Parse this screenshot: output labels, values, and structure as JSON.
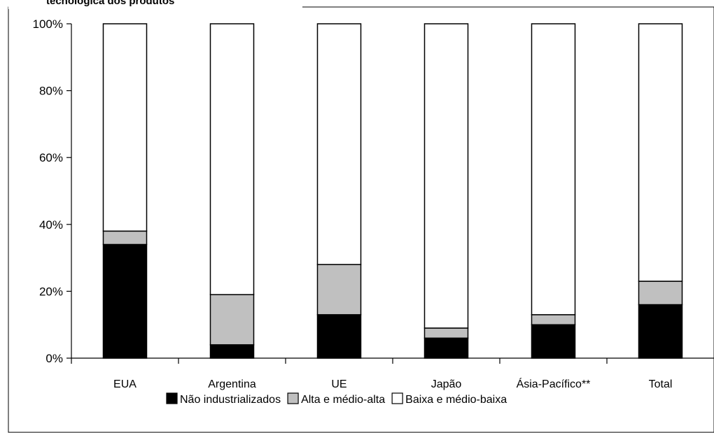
{
  "chart_data": {
    "type": "bar",
    "stacked": true,
    "percent": true,
    "title": "tecnológica dos produtos",
    "categories": [
      "EUA",
      "Argentina",
      "UE",
      "Japão",
      "Ásia-Pacífico**",
      "Total"
    ],
    "series": [
      {
        "name": "Não industrializados",
        "color": "#000000",
        "values": [
          34,
          4,
          13,
          6,
          10,
          16
        ]
      },
      {
        "name": "Alta e médio-alta",
        "color": "#c0c0c0",
        "values": [
          4,
          15,
          15,
          3,
          3,
          7
        ]
      },
      {
        "name": "Baixa e médio-baixa",
        "color": "#ffffff",
        "values": [
          62,
          81,
          72,
          91,
          87,
          77
        ]
      }
    ],
    "ylim": [
      0,
      100
    ],
    "yticks": [
      "0%",
      "20%",
      "40%",
      "60%",
      "80%",
      "100%"
    ],
    "ytick_values": [
      0,
      20,
      40,
      60,
      80,
      100
    ],
    "grid": false,
    "legend": "bottom"
  }
}
